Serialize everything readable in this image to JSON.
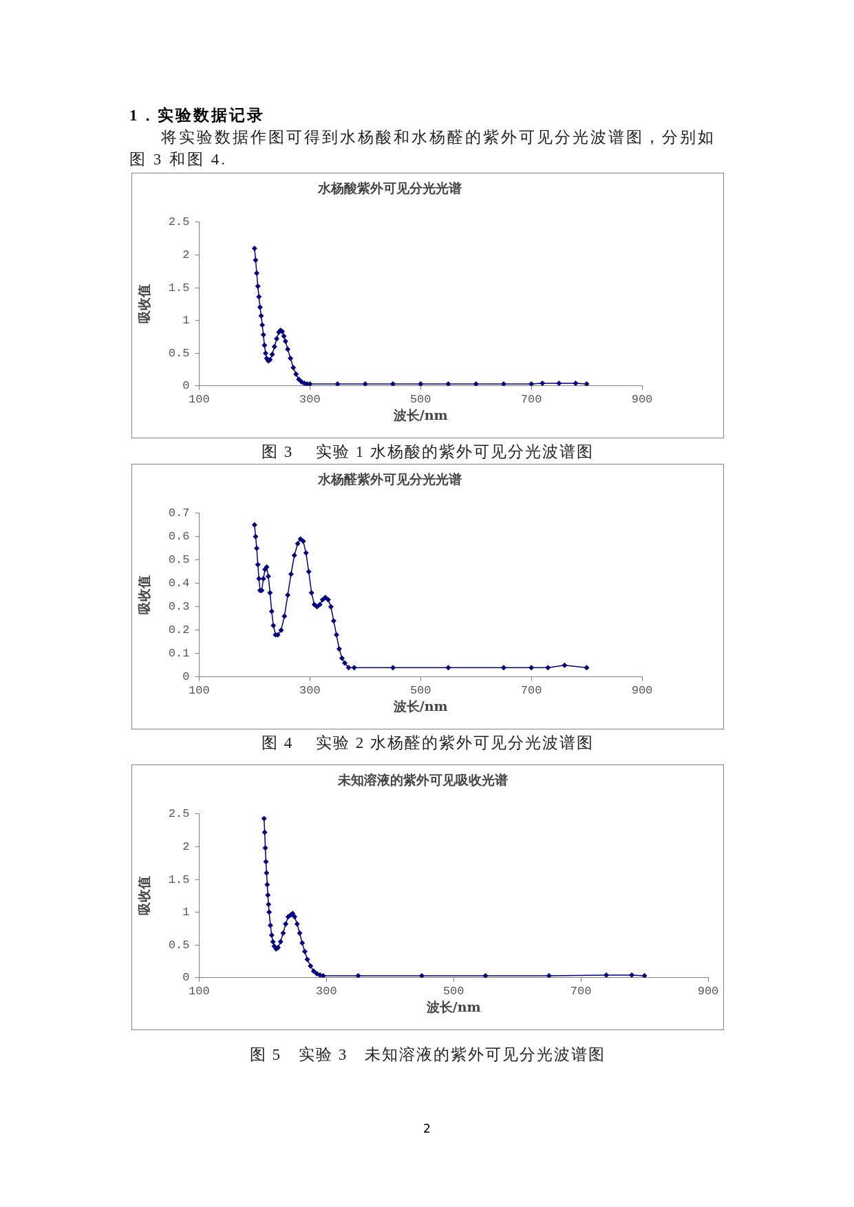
{
  "chart_data": [
    {
      "type": "line",
      "title": "水杨酸紫外可见分光光谱",
      "xlabel": "波长/nm",
      "ylabel": "吸收值",
      "xlim": [
        100,
        900
      ],
      "xticks": [
        100,
        300,
        500,
        700,
        900
      ],
      "ylim": [
        0,
        2.5
      ],
      "yticks": [
        0,
        0.5,
        1,
        1.5,
        2,
        2.5
      ],
      "grid": false,
      "legend": false,
      "marker": "diamond",
      "line_style": "solid",
      "annotations": [
        "图 3　 实验 1 水杨酸的紫外可见分光波谱图",
        "1．实验数据记录",
        "将实验数据作图可得到水杨酸和水杨醛的紫外可见分光波谱图，分别如图 3 和图 4."
      ],
      "series": [
        {
          "color": "#000080",
          "x": [
            200,
            202,
            204,
            206,
            208,
            210,
            212,
            214,
            216,
            218,
            220,
            222,
            225,
            228,
            232,
            236,
            240,
            244,
            247,
            250,
            253,
            256,
            260,
            265,
            270,
            275,
            280,
            285,
            290,
            295,
            300,
            350,
            400,
            450,
            500,
            550,
            600,
            650,
            700,
            720,
            750,
            780,
            800
          ],
          "values": [
            2.1,
            1.92,
            1.72,
            1.52,
            1.36,
            1.2,
            1.07,
            0.93,
            0.78,
            0.62,
            0.5,
            0.42,
            0.38,
            0.4,
            0.48,
            0.6,
            0.72,
            0.82,
            0.85,
            0.83,
            0.76,
            0.68,
            0.56,
            0.42,
            0.28,
            0.18,
            0.1,
            0.06,
            0.04,
            0.03,
            0.03,
            0.03,
            0.03,
            0.03,
            0.03,
            0.03,
            0.03,
            0.03,
            0.03,
            0.04,
            0.04,
            0.04,
            0.03
          ]
        }
      ]
    },
    {
      "type": "line",
      "title": "水杨醛紫外可见分光光谱",
      "xlabel": "波长/nm",
      "ylabel": "吸收值",
      "xlim": [
        100,
        900
      ],
      "xticks": [
        100,
        300,
        500,
        700,
        900
      ],
      "ylim": [
        0,
        0.7
      ],
      "yticks": [
        0,
        0.1,
        0.2,
        0.3,
        0.4,
        0.5,
        0.6,
        0.7
      ],
      "grid": false,
      "legend": false,
      "marker": "diamond",
      "line_style": "solid",
      "annotations": [
        "图 4　 实验 2  水杨醛的紫外可见分光波谱图"
      ],
      "series": [
        {
          "color": "#000080",
          "x": [
            200,
            202,
            204,
            206,
            208,
            210,
            213,
            216,
            219,
            222,
            225,
            228,
            231,
            234,
            238,
            242,
            248,
            254,
            260,
            266,
            272,
            278,
            283,
            288,
            293,
            298,
            303,
            308,
            313,
            318,
            323,
            328,
            333,
            338,
            343,
            348,
            353,
            358,
            363,
            370,
            380,
            450,
            550,
            650,
            700,
            730,
            760,
            800
          ],
          "values": [
            0.65,
            0.6,
            0.55,
            0.48,
            0.42,
            0.37,
            0.37,
            0.42,
            0.46,
            0.47,
            0.43,
            0.36,
            0.28,
            0.22,
            0.18,
            0.18,
            0.2,
            0.26,
            0.35,
            0.44,
            0.52,
            0.57,
            0.59,
            0.58,
            0.53,
            0.45,
            0.36,
            0.31,
            0.3,
            0.31,
            0.33,
            0.34,
            0.33,
            0.3,
            0.24,
            0.18,
            0.12,
            0.08,
            0.06,
            0.04,
            0.04,
            0.04,
            0.04,
            0.04,
            0.04,
            0.04,
            0.05,
            0.04
          ]
        }
      ]
    },
    {
      "type": "line",
      "title": "未知溶液的紫外可见吸收光谱",
      "xlabel": "波长/nm",
      "ylabel": "吸收值",
      "xlim": [
        100,
        900
      ],
      "xticks": [
        100,
        300,
        500,
        700,
        900
      ],
      "ylim": [
        0,
        2.5
      ],
      "yticks": [
        0,
        0.5,
        1,
        1.5,
        2,
        2.5
      ],
      "grid": false,
      "legend": false,
      "marker": "diamond",
      "line_style": "solid",
      "annotations": [
        "图 5　实验 3　未知溶液的紫外可见分光波谱图",
        "2"
      ],
      "series": [
        {
          "color": "#000080",
          "x": [
            202,
            203,
            204,
            205,
            206,
            207,
            208,
            209,
            210,
            212,
            214,
            216,
            218,
            221,
            224,
            228,
            232,
            236,
            240,
            244,
            247,
            250,
            254,
            258,
            262,
            266,
            270,
            275,
            280,
            285,
            290,
            295,
            350,
            450,
            550,
            650,
            740,
            780,
            800
          ],
          "values": [
            2.43,
            2.22,
            1.98,
            1.77,
            1.6,
            1.42,
            1.26,
            1.12,
            1.0,
            0.8,
            0.65,
            0.55,
            0.48,
            0.44,
            0.46,
            0.55,
            0.68,
            0.82,
            0.93,
            0.96,
            0.98,
            0.93,
            0.82,
            0.68,
            0.53,
            0.4,
            0.28,
            0.18,
            0.1,
            0.06,
            0.04,
            0.03,
            0.03,
            0.03,
            0.03,
            0.03,
            0.04,
            0.04,
            0.03
          ]
        }
      ]
    }
  ]
}
